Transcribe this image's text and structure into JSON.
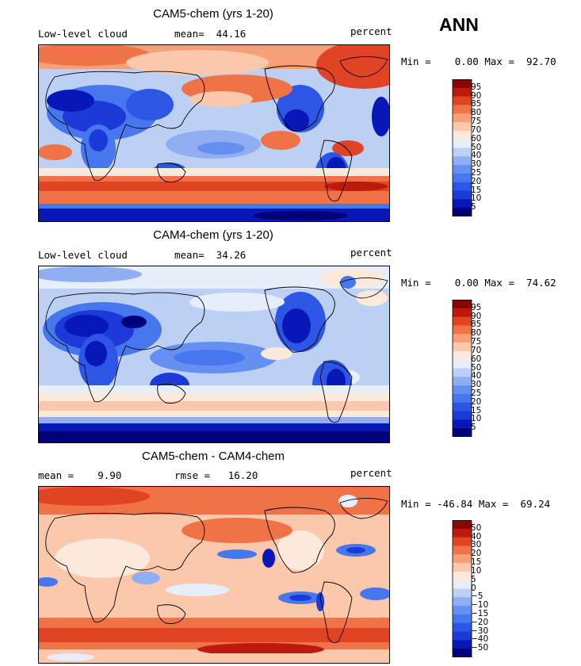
{
  "season": "ANN",
  "panels": [
    {
      "title": "CAM5-chem (yrs 1-20)",
      "variable": "Low-level cloud",
      "stat_text": "mean=  44.16",
      "units": "percent",
      "minmax": "Min =    0.00 Max =  92.70",
      "colorbar_labels": [
        "95",
        "90",
        "85",
        "80",
        "75",
        "70",
        "60",
        "50",
        "40",
        "30",
        "25",
        "20",
        "15",
        "10",
        "5"
      ]
    },
    {
      "title": "CAM4-chem (yrs 1-20)",
      "variable": "Low-level cloud",
      "stat_text": "mean=  34.26",
      "units": "percent",
      "minmax": "Min =    0.00 Max =  74.62",
      "colorbar_labels": [
        "95",
        "90",
        "85",
        "80",
        "75",
        "70",
        "60",
        "50",
        "40",
        "30",
        "25",
        "20",
        "15",
        "10",
        "5"
      ]
    },
    {
      "title": "CAM5-chem - CAM4-chem",
      "stat_left": "mean =    9.90",
      "stat_mid": "rmse =   16.20",
      "units": "percent",
      "minmax": "Min = -46.84 Max =  69.24",
      "colorbar_labels": [
        "50",
        "40",
        "30",
        "20",
        "15",
        "10",
        "5",
        "0",
        "−5",
        "−10",
        "−15",
        "−20",
        "−30",
        "−40",
        "−50"
      ]
    }
  ],
  "chart_data": [
    {
      "type": "heatmap",
      "title": "CAM5-chem (yrs 1-20)",
      "variable": "Low-level cloud",
      "units": "percent",
      "mean": 44.16,
      "min": 0.0,
      "max": 92.7,
      "contour_levels": [
        5,
        10,
        15,
        20,
        25,
        30,
        40,
        50,
        60,
        70,
        75,
        80,
        85,
        90,
        95
      ],
      "colors": [
        "#00007a",
        "#0818b8",
        "#1c3ad8",
        "#2e56e6",
        "#4677ee",
        "#6590f2",
        "#90aef2",
        "#bcd0f4",
        "#e6eefa",
        "#fde8dc",
        "#fbc8ac",
        "#f7a078",
        "#f07348",
        "#e04424",
        "#bd1a0e",
        "#8a0606"
      ]
    },
    {
      "type": "heatmap",
      "title": "CAM4-chem (yrs 1-20)",
      "variable": "Low-level cloud",
      "units": "percent",
      "mean": 34.26,
      "min": 0.0,
      "max": 74.62,
      "contour_levels": [
        5,
        10,
        15,
        20,
        25,
        30,
        40,
        50,
        60,
        70,
        75,
        80,
        85,
        90,
        95
      ],
      "colors": [
        "#00007a",
        "#0818b8",
        "#1c3ad8",
        "#2e56e6",
        "#4677ee",
        "#6590f2",
        "#90aef2",
        "#bcd0f4",
        "#e6eefa",
        "#fde8dc",
        "#fbc8ac",
        "#f7a078",
        "#f07348",
        "#e04424",
        "#bd1a0e",
        "#8a0606"
      ]
    },
    {
      "type": "heatmap",
      "title": "CAM5-chem - CAM4-chem",
      "units": "percent",
      "mean": 9.9,
      "rmse": 16.2,
      "min": -46.84,
      "max": 69.24,
      "contour_levels": [
        -50,
        -40,
        -30,
        -20,
        -15,
        -10,
        -5,
        0,
        5,
        10,
        15,
        20,
        30,
        40,
        50
      ],
      "colors": [
        "#00007a",
        "#0818b8",
        "#1c3ad8",
        "#2e56e6",
        "#4677ee",
        "#6590f2",
        "#90aef2",
        "#bcd0f4",
        "#e6eefa",
        "#fde8dc",
        "#fbc8ac",
        "#f7a078",
        "#f07348",
        "#e04424",
        "#bd1a0e",
        "#8a0606"
      ]
    }
  ]
}
